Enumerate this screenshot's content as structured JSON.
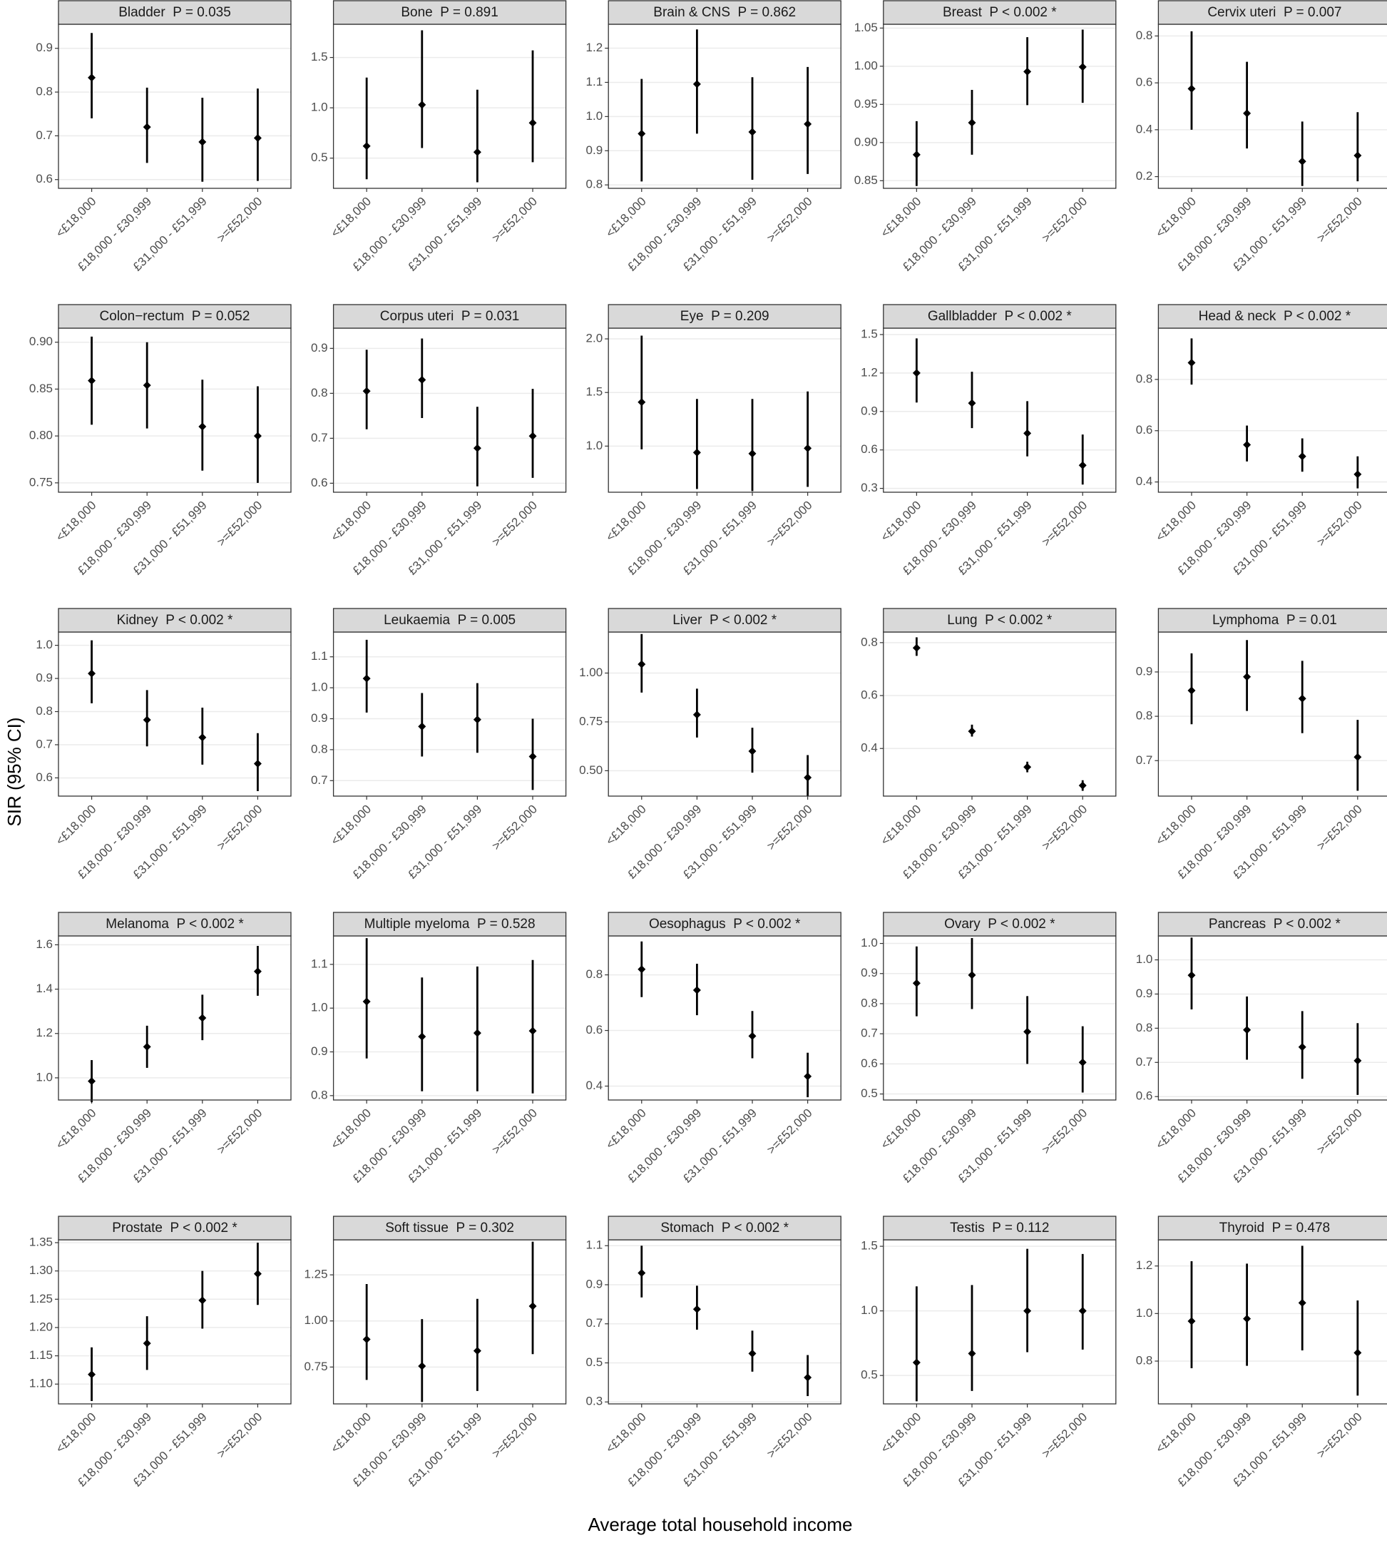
{
  "y_label": "SIR (95% CI)",
  "x_label": "Average total household income",
  "chart_data": [
    {
      "type": "errorbar",
      "title": "Bladder  P = 0.035",
      "categories": [
        "<£18,000",
        "£18,000 - £30,999",
        "£31,000 - £51,999",
        ">=£52,000"
      ],
      "values": [
        0.833,
        0.72,
        0.686,
        0.695
      ],
      "lower": [
        0.74,
        0.638,
        0.595,
        0.597
      ],
      "upper": [
        0.935,
        0.81,
        0.787,
        0.808
      ],
      "ylim": [
        0.58,
        0.955
      ],
      "yticks": [
        0.6,
        0.7,
        0.8,
        0.9
      ],
      "color": "#000000"
    },
    {
      "type": "errorbar",
      "title": "Bone  P = 0.891",
      "categories": [
        "<£18,000",
        "£18,000 - £30,999",
        "£31,000 - £51,999",
        ">=£52,000"
      ],
      "values": [
        0.62,
        1.03,
        0.56,
        0.85
      ],
      "lower": [
        0.29,
        0.6,
        0.26,
        0.46
      ],
      "upper": [
        1.3,
        1.77,
        1.18,
        1.57
      ],
      "ylim": [
        0.2,
        1.83
      ],
      "yticks": [
        0.5,
        {
          "value": 1.0,
          "label": "1.0"
        },
        1.5
      ],
      "color": "#000000"
    },
    {
      "type": "errorbar",
      "title": "Brain & CNS  P = 0.862",
      "categories": [
        "<£18,000",
        "£18,000 - £30,999",
        "£31,000 - £51,999",
        ">=£52,000"
      ],
      "values": [
        0.95,
        1.095,
        0.955,
        0.978
      ],
      "lower": [
        0.81,
        0.95,
        0.815,
        0.832
      ],
      "upper": [
        1.11,
        1.255,
        1.115,
        1.145
      ],
      "ylim": [
        0.79,
        1.27
      ],
      "yticks": [
        0.8,
        0.9,
        {
          "value": 1.0,
          "label": "1.0"
        },
        1.1,
        1.2
      ],
      "color": "#000000"
    },
    {
      "type": "errorbar",
      "title": "Breast  P < 0.002 *",
      "categories": [
        "<£18,000",
        "£18,000 - £30,999",
        "£31,000 - £51,999",
        ">=£52,000"
      ],
      "values": [
        0.884,
        0.926,
        0.993,
        0.999
      ],
      "lower": [
        0.843,
        0.884,
        0.949,
        0.952
      ],
      "upper": [
        0.928,
        0.969,
        1.038,
        1.048
      ],
      "ylim": [
        0.84,
        1.055
      ],
      "yticks": [
        0.85,
        {
          "value": 0.9,
          "label": "0.90"
        },
        0.95,
        {
          "value": 1.0,
          "label": "1.00"
        },
        1.05
      ],
      "color": "#000000"
    },
    {
      "type": "errorbar",
      "title": "Cervix uteri  P = 0.007",
      "categories": [
        "<£18,000",
        "£18,000 - £30,999",
        "£31,000 - £51,999",
        ">=£52,000"
      ],
      "values": [
        0.575,
        0.47,
        0.265,
        0.29
      ],
      "lower": [
        0.4,
        0.32,
        0.16,
        0.18
      ],
      "upper": [
        0.82,
        0.69,
        0.435,
        0.475
      ],
      "ylim": [
        0.15,
        0.85
      ],
      "yticks": [
        0.2,
        0.4,
        0.6,
        0.8
      ],
      "color": "#000000"
    },
    {
      "type": "errorbar",
      "title": "Colon−rectum  P = 0.052",
      "categories": [
        "<£18,000",
        "£18,000 - £30,999",
        "£31,000 - £51,999",
        ">=£52,000"
      ],
      "values": [
        0.859,
        0.854,
        0.81,
        0.8
      ],
      "lower": [
        0.812,
        0.808,
        0.763,
        0.75
      ],
      "upper": [
        0.906,
        0.9,
        0.86,
        0.853
      ],
      "ylim": [
        0.74,
        0.915
      ],
      "yticks": [
        0.75,
        {
          "value": 0.8,
          "label": "0.80"
        },
        0.85,
        {
          "value": 0.9,
          "label": "0.90"
        }
      ],
      "color": "#000000"
    },
    {
      "type": "errorbar",
      "title": "Corpus uteri  P = 0.031",
      "categories": [
        "<£18,000",
        "£18,000 - £30,999",
        "£31,000 - £51,999",
        ">=£52,000"
      ],
      "values": [
        0.805,
        0.83,
        0.678,
        0.705
      ],
      "lower": [
        0.72,
        0.745,
        0.593,
        0.612
      ],
      "upper": [
        0.897,
        0.922,
        0.77,
        0.81
      ],
      "ylim": [
        0.58,
        0.945
      ],
      "yticks": [
        0.6,
        0.7,
        0.8,
        0.9
      ],
      "color": "#000000"
    },
    {
      "type": "errorbar",
      "title": "Eye  P = 0.209",
      "categories": [
        "<£18,000",
        "£18,000 - £30,999",
        "£31,000 - £51,999",
        ">=£52,000"
      ],
      "values": [
        1.41,
        0.94,
        0.93,
        0.98
      ],
      "lower": [
        0.97,
        0.6,
        0.58,
        0.62
      ],
      "upper": [
        2.03,
        1.44,
        1.44,
        1.51
      ],
      "ylim": [
        0.57,
        2.1
      ],
      "yticks": [
        {
          "value": 1.0,
          "label": "1.0"
        },
        1.5,
        {
          "value": 2.0,
          "label": "2.0"
        }
      ],
      "color": "#000000"
    },
    {
      "type": "errorbar",
      "title": "Gallbladder  P < 0.002 *",
      "categories": [
        "<£18,000",
        "£18,000 - £30,999",
        "£31,000 - £51,999",
        ">=£52,000"
      ],
      "values": [
        1.2,
        0.965,
        0.73,
        0.48
      ],
      "lower": [
        0.97,
        0.77,
        0.55,
        0.33
      ],
      "upper": [
        1.47,
        1.21,
        0.98,
        0.72
      ],
      "ylim": [
        0.27,
        1.55
      ],
      "yticks": [
        0.3,
        0.6,
        0.9,
        1.2,
        1.5
      ],
      "color": "#000000"
    },
    {
      "type": "errorbar",
      "title": "Head & neck  P < 0.002 *",
      "categories": [
        "<£18,000",
        "£18,000 - £30,999",
        "£31,000 - £51,999",
        ">=£52,000"
      ],
      "values": [
        0.865,
        0.545,
        0.5,
        0.43
      ],
      "lower": [
        0.78,
        0.48,
        0.44,
        0.375
      ],
      "upper": [
        0.96,
        0.62,
        0.57,
        0.5
      ],
      "ylim": [
        0.36,
        1.0
      ],
      "yticks": [
        0.4,
        0.6,
        0.8
      ],
      "color": "#000000"
    },
    {
      "type": "errorbar",
      "title": "Kidney  P < 0.002 *",
      "categories": [
        "<£18,000",
        "£18,000 - £30,999",
        "£31,000 - £51,999",
        ">=£52,000"
      ],
      "values": [
        0.915,
        0.775,
        0.722,
        0.643
      ],
      "lower": [
        0.825,
        0.695,
        0.64,
        0.56
      ],
      "upper": [
        1.015,
        0.865,
        0.812,
        0.735
      ],
      "ylim": [
        0.545,
        1.04
      ],
      "yticks": [
        0.6,
        0.7,
        0.8,
        0.9,
        {
          "value": 1.0,
          "label": "1.0"
        }
      ],
      "color": "#000000"
    },
    {
      "type": "errorbar",
      "title": "Leukaemia  P = 0.005",
      "categories": [
        "<£18,000",
        "£18,000 - £30,999",
        "£31,000 - £51,999",
        ">=£52,000"
      ],
      "values": [
        1.03,
        0.875,
        0.897,
        0.778
      ],
      "lower": [
        0.92,
        0.778,
        0.79,
        0.67
      ],
      "upper": [
        1.155,
        0.983,
        1.015,
        0.9
      ],
      "ylim": [
        0.65,
        1.18
      ],
      "yticks": [
        0.7,
        0.8,
        0.9,
        {
          "value": 1.0,
          "label": "1.0"
        },
        1.1
      ],
      "color": "#000000"
    },
    {
      "type": "errorbar",
      "title": "Liver  P < 0.002 *",
      "categories": [
        "<£18,000",
        "£18,000 - £30,999",
        "£31,000 - £51,999",
        ">=£52,000"
      ],
      "values": [
        1.045,
        0.787,
        0.6,
        0.465
      ],
      "lower": [
        0.9,
        0.67,
        0.49,
        0.37
      ],
      "upper": [
        1.2,
        0.92,
        0.72,
        0.58
      ],
      "ylim": [
        0.37,
        1.21
      ],
      "yticks": [
        {
          "value": 0.5,
          "label": "0.50"
        },
        0.75,
        {
          "value": 1.0,
          "label": "1.00"
        }
      ],
      "color": "#000000"
    },
    {
      "type": "errorbar",
      "title": "Lung  P < 0.002 *",
      "categories": [
        "<£18,000",
        "£18,000 - £30,999",
        "£31,000 - £51,999",
        ">=£52,000"
      ],
      "values": [
        0.78,
        0.465,
        0.33,
        0.26
      ],
      "lower": [
        0.75,
        0.445,
        0.31,
        0.24
      ],
      "upper": [
        0.82,
        0.49,
        0.35,
        0.28
      ],
      "ylim": [
        0.22,
        0.84
      ],
      "yticks": [
        0.4,
        0.6,
        0.8
      ],
      "color": "#000000"
    },
    {
      "type": "errorbar",
      "title": "Lymphoma  P = 0.01",
      "categories": [
        "<£18,000",
        "£18,000 - £30,999",
        "£31,000 - £51,999",
        ">=£52,000"
      ],
      "values": [
        0.858,
        0.889,
        0.84,
        0.708
      ],
      "lower": [
        0.782,
        0.812,
        0.762,
        0.632
      ],
      "upper": [
        0.942,
        0.972,
        0.925,
        0.792
      ],
      "ylim": [
        0.62,
        0.99
      ],
      "yticks": [
        0.7,
        0.8,
        0.9
      ],
      "color": "#000000"
    },
    {
      "type": "errorbar",
      "title": "Melanoma  P < 0.002 *",
      "categories": [
        "<£18,000",
        "£18,000 - £30,999",
        "£31,000 - £51,999",
        ">=£52,000"
      ],
      "values": [
        0.985,
        1.14,
        1.27,
        1.48
      ],
      "lower": [
        0.89,
        1.045,
        1.17,
        1.37
      ],
      "upper": [
        1.08,
        1.235,
        1.375,
        1.595
      ],
      "ylim": [
        0.9,
        1.64
      ],
      "yticks": [
        {
          "value": 1.0,
          "label": "1.0"
        },
        1.2,
        1.4,
        1.6
      ],
      "color": "#000000"
    },
    {
      "type": "errorbar",
      "title": "Multiple myeloma  P = 0.528",
      "categories": [
        "<£18,000",
        "£18,000 - £30,999",
        "£31,000 - £51,999",
        ">=£52,000"
      ],
      "values": [
        1.015,
        0.935,
        0.943,
        0.948
      ],
      "lower": [
        0.885,
        0.81,
        0.81,
        0.805
      ],
      "upper": [
        1.16,
        1.07,
        1.095,
        1.11
      ],
      "ylim": [
        0.79,
        1.165
      ],
      "yticks": [
        0.8,
        0.9,
        {
          "value": 1.0,
          "label": "1.0"
        },
        1.1
      ],
      "color": "#000000"
    },
    {
      "type": "errorbar",
      "title": "Oesophagus  P < 0.002 *",
      "categories": [
        "<£18,000",
        "£18,000 - £30,999",
        "£31,000 - £51,999",
        ">=£52,000"
      ],
      "values": [
        0.82,
        0.745,
        0.58,
        0.435
      ],
      "lower": [
        0.72,
        0.655,
        0.5,
        0.36
      ],
      "upper": [
        0.92,
        0.84,
        0.67,
        0.52
      ],
      "ylim": [
        0.35,
        0.94
      ],
      "yticks": [
        0.4,
        0.6,
        0.8
      ],
      "color": "#000000"
    },
    {
      "type": "errorbar",
      "title": "Ovary  P < 0.002 *",
      "categories": [
        "<£18,000",
        "£18,000 - £30,999",
        "£31,000 - £51,999",
        ">=£52,000"
      ],
      "values": [
        0.868,
        0.895,
        0.707,
        0.605
      ],
      "lower": [
        0.758,
        0.782,
        0.6,
        0.505
      ],
      "upper": [
        0.99,
        1.018,
        0.825,
        0.725
      ],
      "ylim": [
        0.48,
        1.025
      ],
      "yticks": [
        0.5,
        0.6,
        0.7,
        0.8,
        0.9,
        {
          "value": 1.0,
          "label": "1.0"
        }
      ],
      "color": "#000000"
    },
    {
      "type": "errorbar",
      "title": "Pancreas  P < 0.002 *",
      "categories": [
        "<£18,000",
        "£18,000 - £30,999",
        "£31,000 - £51,999",
        ">=£52,000"
      ],
      "values": [
        0.955,
        0.795,
        0.745,
        0.705
      ],
      "lower": [
        0.855,
        0.708,
        0.652,
        0.605
      ],
      "upper": [
        1.065,
        0.893,
        0.85,
        0.815
      ],
      "ylim": [
        0.59,
        1.07
      ],
      "yticks": [
        0.6,
        0.7,
        0.8,
        0.9,
        {
          "value": 1.0,
          "label": "1.0"
        }
      ],
      "color": "#000000"
    },
    {
      "type": "errorbar",
      "title": "Prostate  P < 0.002 *",
      "categories": [
        "<£18,000",
        "£18,000 - £30,999",
        "£31,000 - £51,999",
        ">=£52,000"
      ],
      "values": [
        1.117,
        1.172,
        1.248,
        1.295
      ],
      "lower": [
        1.07,
        1.125,
        1.198,
        1.24
      ],
      "upper": [
        1.165,
        1.22,
        1.3,
        1.35
      ],
      "ylim": [
        1.065,
        1.355
      ],
      "yticks": [
        {
          "value": 1.1,
          "label": "1.10"
        },
        1.15,
        {
          "value": 1.2,
          "label": "1.20"
        },
        1.25,
        {
          "value": 1.3,
          "label": "1.30"
        },
        1.35
      ],
      "color": "#000000"
    },
    {
      "type": "errorbar",
      "title": "Soft tissue  P = 0.302",
      "categories": [
        "<£18,000",
        "£18,000 - £30,999",
        "£31,000 - £51,999",
        ">=£52,000"
      ],
      "values": [
        0.9,
        0.755,
        0.838,
        1.08
      ],
      "lower": [
        0.68,
        0.56,
        0.62,
        0.82
      ],
      "upper": [
        1.2,
        1.01,
        1.12,
        1.43
      ],
      "ylim": [
        0.55,
        1.44
      ],
      "yticks": [
        0.75,
        {
          "value": 1.0,
          "label": "1.00"
        },
        1.25
      ],
      "color": "#000000"
    },
    {
      "type": "errorbar",
      "title": "Stomach  P < 0.002 *",
      "categories": [
        "<£18,000",
        "£18,000 - £30,999",
        "£31,000 - £51,999",
        ">=£52,000"
      ],
      "values": [
        0.96,
        0.775,
        0.548,
        0.425
      ],
      "lower": [
        0.835,
        0.67,
        0.455,
        0.33
      ],
      "upper": [
        1.1,
        0.895,
        0.665,
        0.54
      ],
      "ylim": [
        0.29,
        1.13
      ],
      "yticks": [
        0.3,
        0.5,
        0.7,
        0.9,
        1.1
      ],
      "color": "#000000"
    },
    {
      "type": "errorbar",
      "title": "Testis  P = 0.112",
      "categories": [
        "<£18,000",
        "£18,000 - £30,999",
        "£31,000 - £51,999",
        ">=£52,000"
      ],
      "values": [
        0.6,
        0.67,
        1.0,
        1.0
      ],
      "lower": [
        0.3,
        0.38,
        0.68,
        0.7
      ],
      "upper": [
        1.19,
        1.2,
        1.48,
        1.44
      ],
      "ylim": [
        0.28,
        1.55
      ],
      "yticks": [
        0.5,
        {
          "value": 1.0,
          "label": "1.0"
        },
        1.5
      ],
      "color": "#000000"
    },
    {
      "type": "errorbar",
      "title": "Thyroid  P = 0.478",
      "categories": [
        "<£18,000",
        "£18,000 - £30,999",
        "£31,000 - £51,999",
        ">=£52,000"
      ],
      "values": [
        0.968,
        0.978,
        1.045,
        0.835
      ],
      "lower": [
        0.77,
        0.78,
        0.845,
        0.655
      ],
      "upper": [
        1.22,
        1.21,
        1.285,
        1.055
      ],
      "ylim": [
        0.62,
        1.31
      ],
      "yticks": [
        0.8,
        {
          "value": 1.0,
          "label": "1.0"
        },
        1.2
      ],
      "color": "#000000"
    }
  ]
}
